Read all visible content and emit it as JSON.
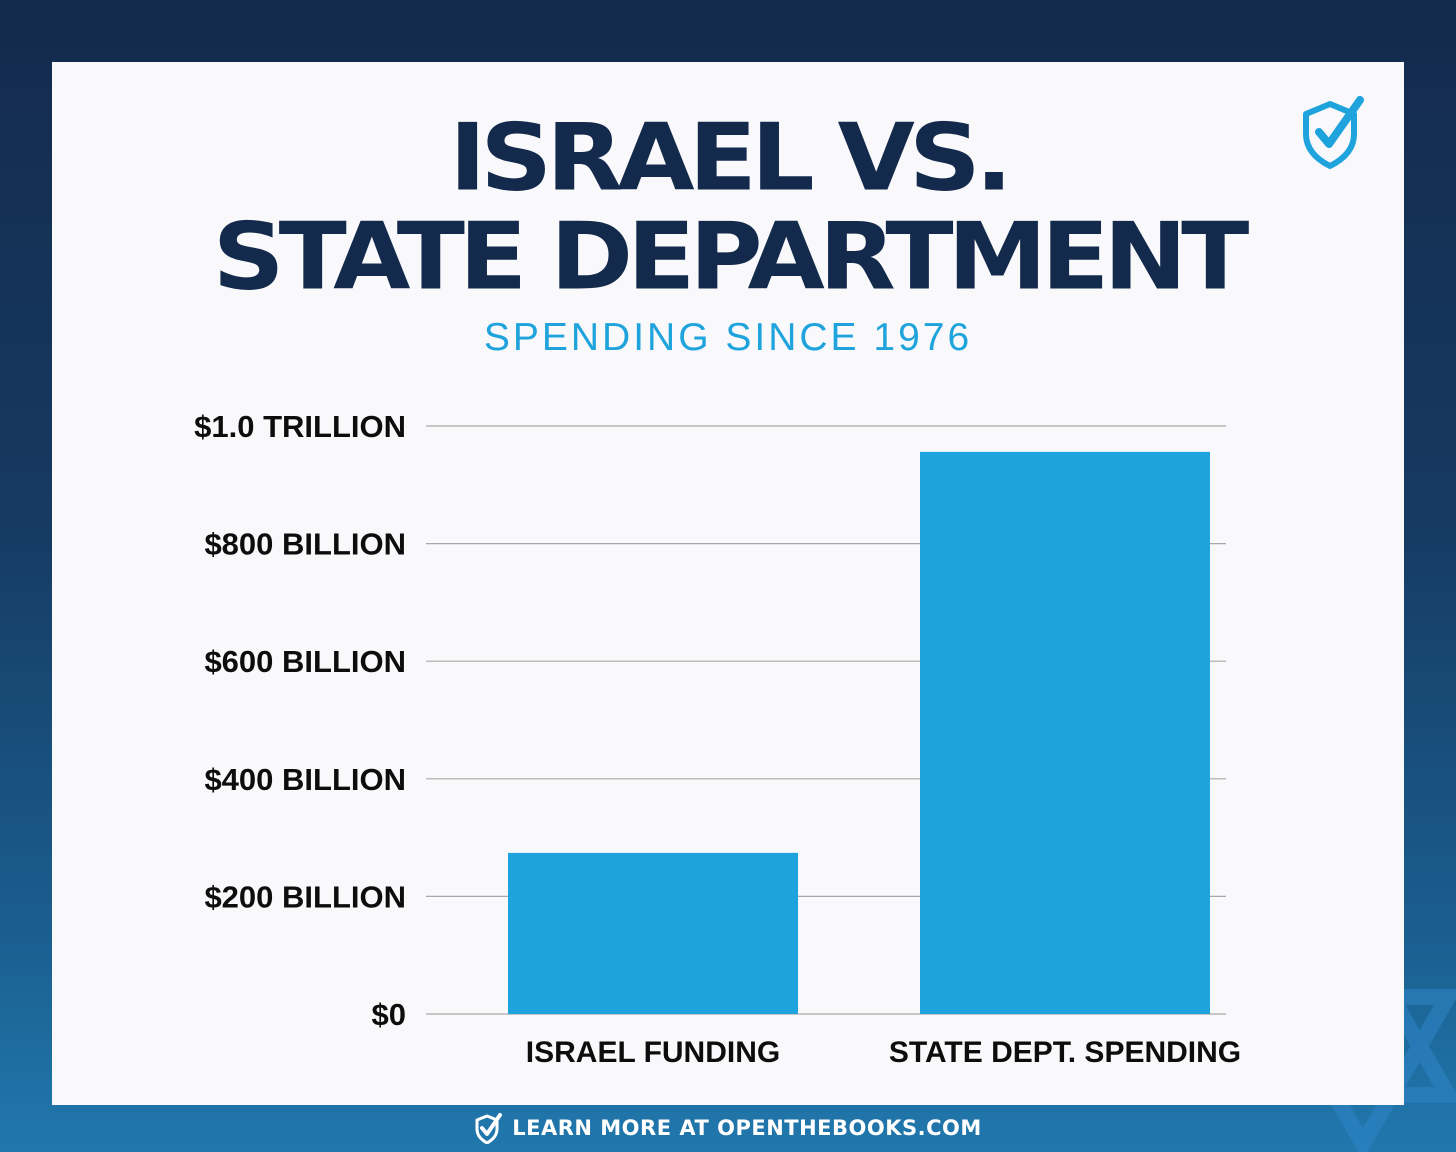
{
  "header": {
    "title_line1": "ISRAEL VS.",
    "title_line2": "STATE DEPARTMENT",
    "subtitle": "SPENDING SINCE 1976"
  },
  "footer": {
    "text": "LEARN MORE AT OPENTHEBOOKS.COM"
  },
  "icons": {
    "logo": "shield-check-icon",
    "footer": "shield-check-icon",
    "decoration": "star-of-david-icon"
  },
  "colors": {
    "bar": "#1fa3dc",
    "title": "#132a4c",
    "subtitle": "#1fa3dc",
    "grid": "#a8a8a8"
  },
  "chart_data": {
    "type": "bar",
    "title": "ISRAEL VS. STATE DEPARTMENT",
    "subtitle": "SPENDING SINCE 1976",
    "categories": [
      "ISRAEL FUNDING",
      "STATE DEPT. SPENDING"
    ],
    "values": [
      274,
      956
    ],
    "ylim": [
      0,
      1000
    ],
    "yticks": [
      0,
      200,
      400,
      600,
      800,
      1000
    ],
    "ytick_labels": [
      "$0",
      "$200 BILLION",
      "$400 BILLION",
      "$600 BILLION",
      "$800 BILLION",
      "$1.0 TRILLION"
    ],
    "grid": true,
    "legend": "none"
  }
}
